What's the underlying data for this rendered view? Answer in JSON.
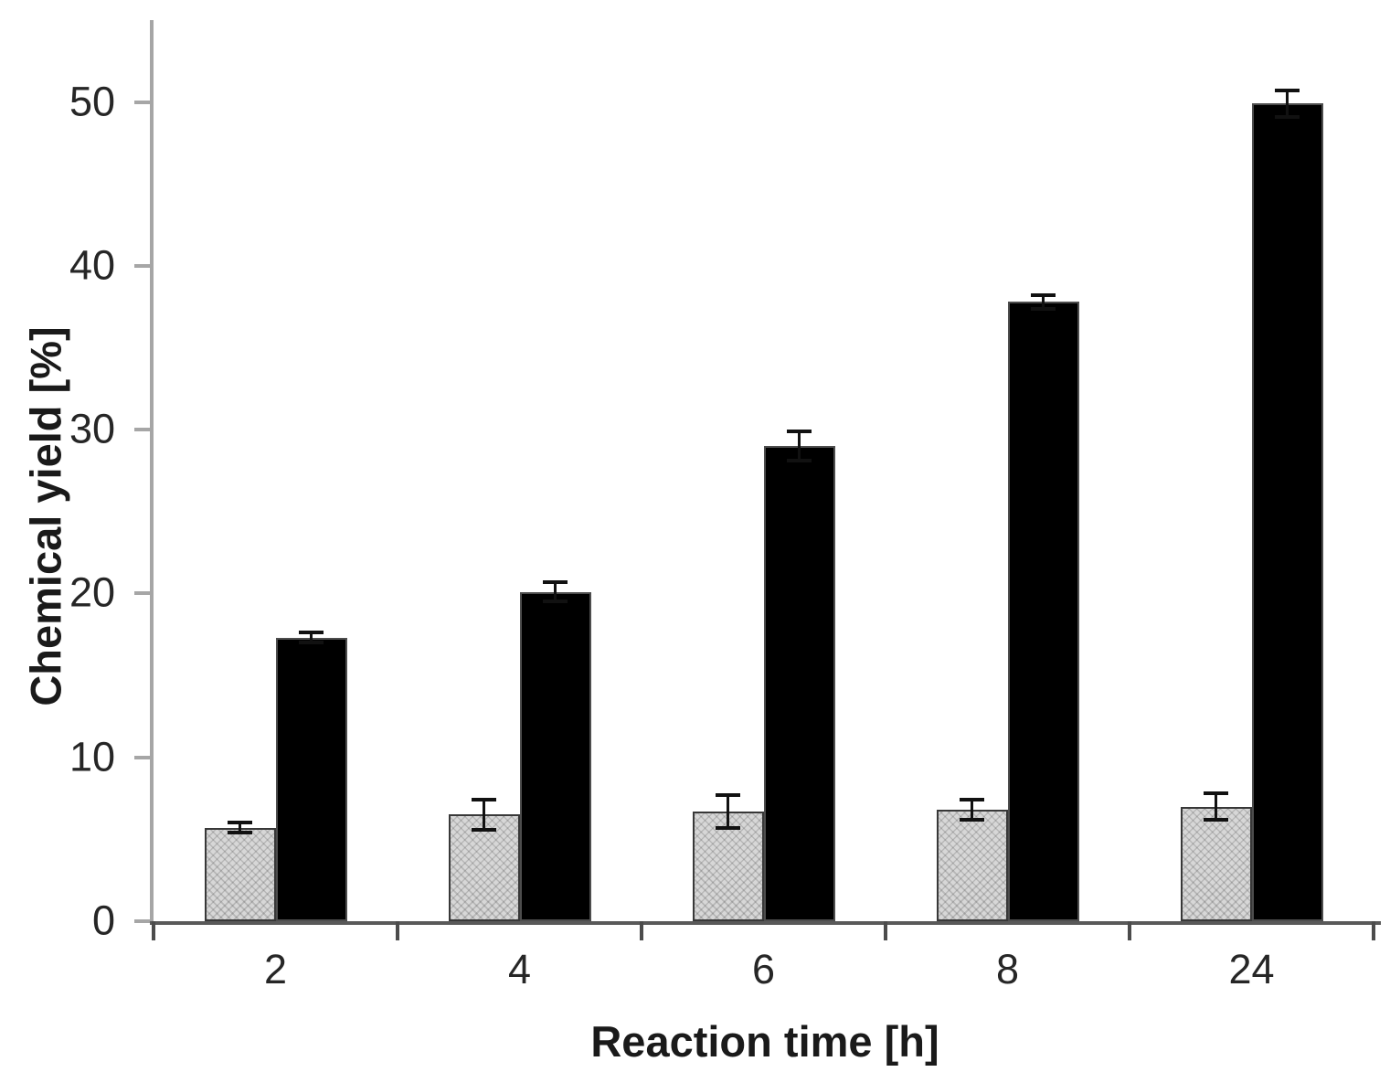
{
  "chart_data": {
    "type": "bar",
    "title": "",
    "xlabel": "Reaction time [h]",
    "ylabel": "Chemical yield [%]",
    "categories": [
      "2",
      "4",
      "6",
      "8",
      "24"
    ],
    "series": [
      {
        "name": "gray-hatched",
        "values": [
          5.7,
          6.5,
          6.7,
          6.8,
          7.0
        ],
        "errors": [
          0.3,
          0.9,
          1.0,
          0.6,
          0.8
        ],
        "color": "#d7d7d7",
        "pattern": "dotted-crosshatch"
      },
      {
        "name": "black",
        "values": [
          17.3,
          20.1,
          29.0,
          37.8,
          49.9
        ],
        "errors": [
          0.3,
          0.6,
          0.9,
          0.4,
          0.8
        ],
        "color": "#000000",
        "pattern": "solid"
      }
    ],
    "y_ticks": [
      0,
      10,
      20,
      30,
      40,
      50
    ],
    "ylim": [
      0,
      55
    ],
    "grid": false,
    "legend_position": "none",
    "error_bars": true,
    "axis_colors": {
      "y_axis": "#a6a6a6",
      "x_axis": "#595959"
    },
    "text_color": "#262626"
  }
}
